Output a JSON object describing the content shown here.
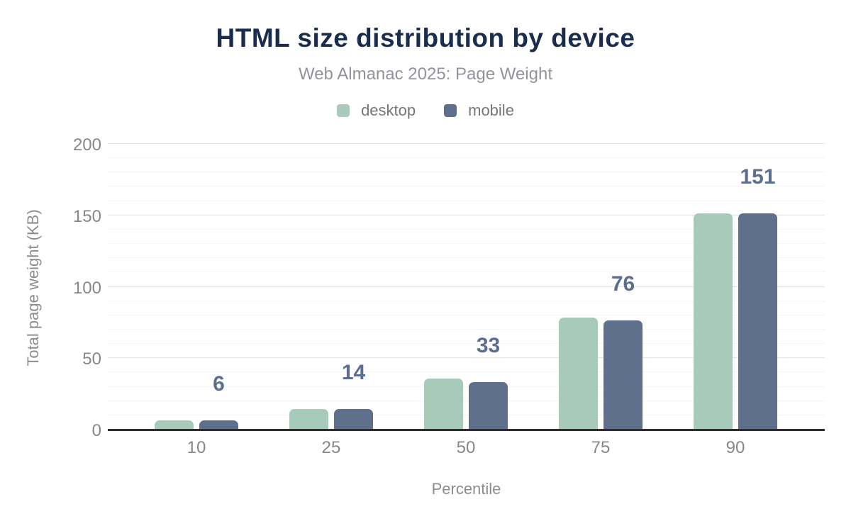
{
  "header": {
    "title": "HTML size distribution by device",
    "subtitle": "Web Almanac 2025: Page Weight"
  },
  "chart_data": {
    "type": "bar",
    "title": "HTML size distribution by device",
    "subtitle": "Web Almanac 2025: Page Weight",
    "categories": [
      "10",
      "25",
      "50",
      "75",
      "90"
    ],
    "series": [
      {
        "name": "desktop",
        "color": "#a8cabb",
        "values": [
          6,
          14,
          35,
          78,
          151
        ]
      },
      {
        "name": "mobile",
        "color": "#5f708c",
        "values": [
          6,
          14,
          33,
          76,
          151
        ]
      }
    ],
    "data_labels": [
      "6",
      "14",
      "33",
      "76",
      "151"
    ],
    "xlabel": "Percentile",
    "ylabel": "Total page weight (KB)",
    "ylim": [
      0,
      200
    ],
    "y_ticks": [
      0,
      50,
      100,
      150,
      200
    ],
    "y_major_step": 50,
    "y_minor_step": 10,
    "grid": true,
    "legend_position": "top"
  },
  "colors": {
    "title": "#1b2d4f",
    "subtitle": "#919498",
    "axis_text": "#85888b",
    "axis_line": "#2d2d2d",
    "grid_major": "#e3e3e3",
    "grid_minor": "#f4f4f4",
    "data_label": "#5b6d91",
    "desktop": "#a8cabb",
    "mobile": "#5f708c"
  }
}
